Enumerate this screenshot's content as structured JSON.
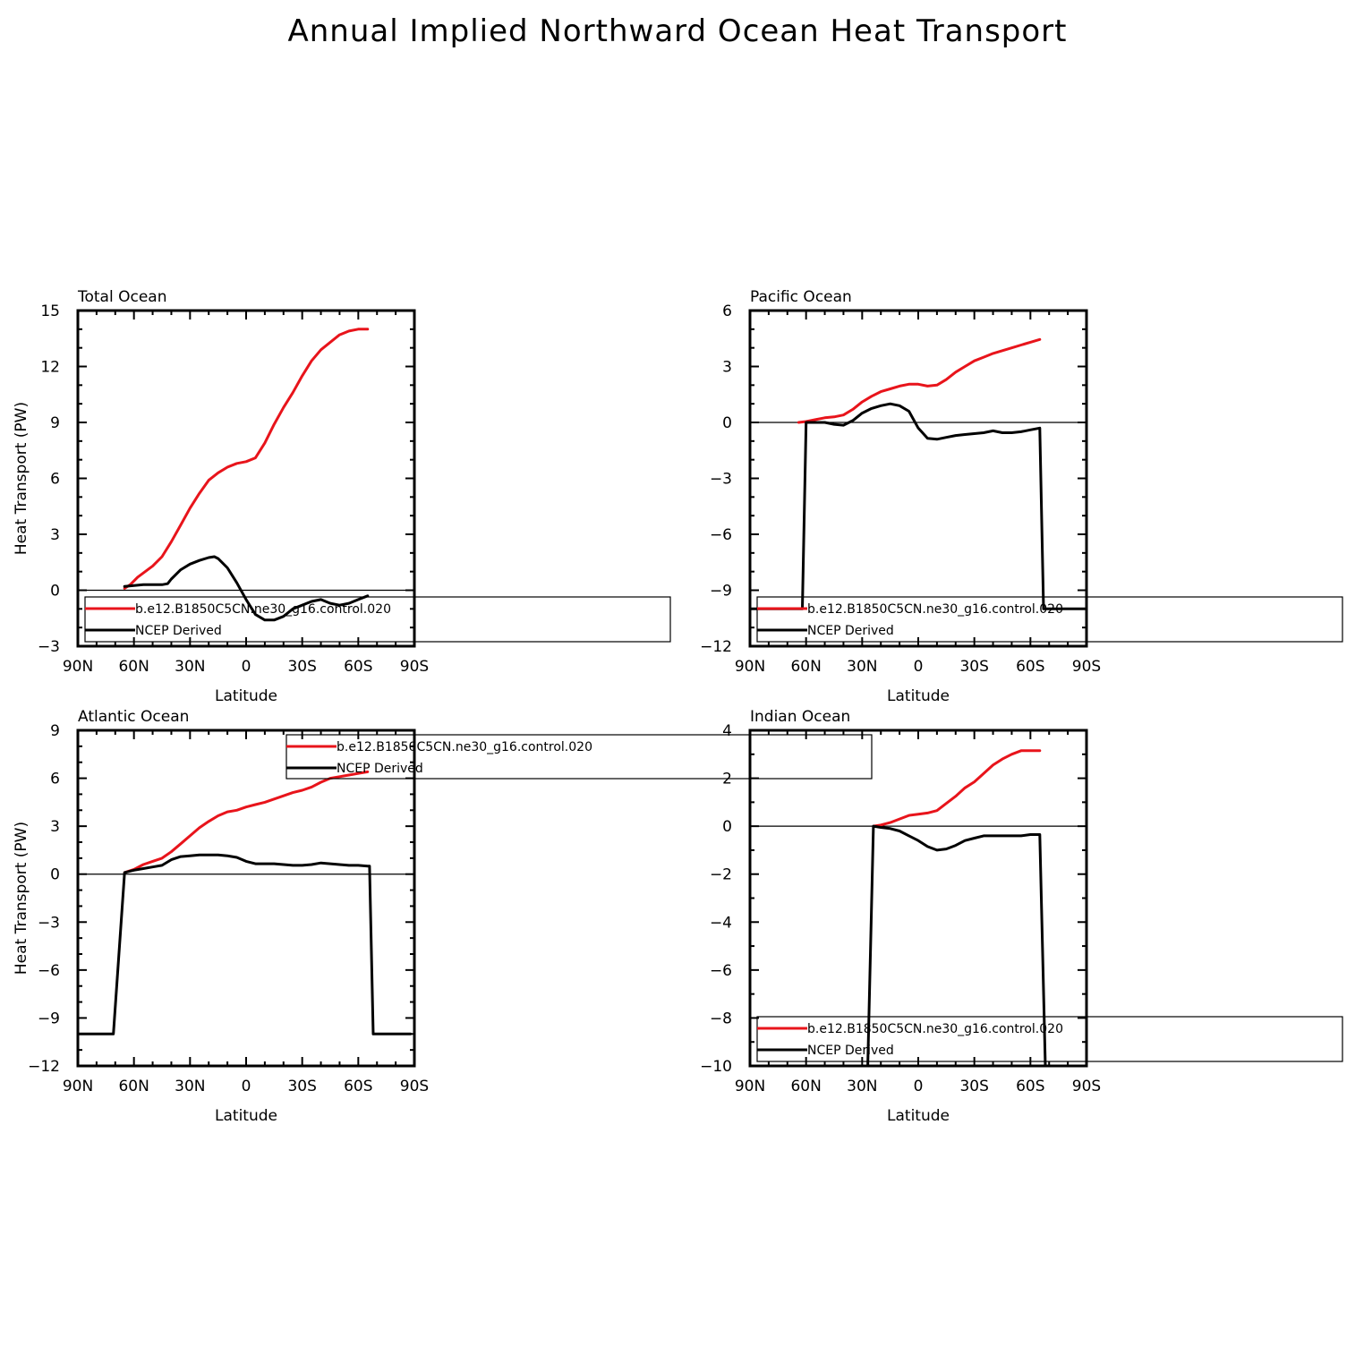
{
  "title": "Annual Implied Northward Ocean Heat Transport",
  "colors": {
    "model": "#e8141b",
    "obs": "#000000"
  },
  "legend_labels": {
    "model": "b.e12.B1850C5CN.ne30_g16.control.020",
    "obs": "NCEP Derived"
  },
  "chart_data": [
    {
      "type": "line",
      "title": "Total Ocean",
      "xlabel": "Latitude",
      "ylabel": "Heat Transport (PW)",
      "xlim": [
        90,
        -90
      ],
      "xticks": [
        90,
        60,
        30,
        0,
        -30,
        -60,
        -90
      ],
      "xticklabels": [
        "90N",
        "60N",
        "30N",
        "0",
        "30S",
        "60S",
        "90S"
      ],
      "ylim": [
        -3,
        15
      ],
      "yticks": [
        -3,
        0,
        3,
        6,
        9,
        12,
        15
      ],
      "zero_line": true,
      "legend": "lower-right, overflowing plot",
      "series": [
        {
          "name": "b.e12.B1850C5CN.ne30_g16.control.020",
          "color": "#e8141b",
          "x": [
            65,
            62,
            58,
            54,
            50,
            45,
            40,
            35,
            30,
            25,
            20,
            15,
            10,
            5,
            0,
            -5,
            -10,
            -15,
            -20,
            -25,
            -30,
            -35,
            -40,
            -45,
            -50,
            -55,
            -60,
            -63,
            -65
          ],
          "y": [
            0.1,
            0.3,
            0.7,
            1.0,
            1.3,
            1.8,
            2.6,
            3.5,
            4.4,
            5.2,
            5.9,
            6.3,
            6.6,
            6.8,
            6.9,
            7.1,
            7.9,
            8.9,
            9.8,
            10.6,
            11.5,
            12.3,
            12.9,
            13.3,
            13.7,
            13.9,
            14.0,
            14.0,
            14.0
          ]
        },
        {
          "name": "NCEP Derived",
          "color": "#000000",
          "x": [
            65,
            60,
            55,
            50,
            45,
            42,
            40,
            35,
            30,
            25,
            20,
            17,
            15,
            10,
            5,
            0,
            -5,
            -10,
            -15,
            -20,
            -25,
            -30,
            -35,
            -40,
            -45,
            -50,
            -55,
            -60,
            -65
          ],
          "y": [
            0.2,
            0.25,
            0.3,
            0.3,
            0.3,
            0.35,
            0.6,
            1.1,
            1.4,
            1.6,
            1.75,
            1.8,
            1.7,
            1.2,
            0.4,
            -0.5,
            -1.3,
            -1.6,
            -1.6,
            -1.4,
            -1.0,
            -0.8,
            -0.6,
            -0.5,
            -0.7,
            -0.8,
            -0.7,
            -0.5,
            -0.3
          ]
        }
      ]
    },
    {
      "type": "line",
      "title": "Pacific Ocean",
      "xlabel": "Latitude",
      "ylabel": "",
      "xlim": [
        90,
        -90
      ],
      "xticks": [
        90,
        60,
        30,
        0,
        -30,
        -60,
        -90
      ],
      "xticklabels": [
        "90N",
        "60N",
        "30N",
        "0",
        "30S",
        "60S",
        "90S"
      ],
      "ylim": [
        -12,
        6
      ],
      "yticks": [
        -12,
        -9,
        -6,
        -3,
        0,
        3,
        6
      ],
      "zero_line": true,
      "legend": "lower-right, overflowing plot",
      "series": [
        {
          "name": "b.e12.B1850C5CN.ne30_g16.control.020",
          "color": "#e8141b",
          "x": [
            64,
            60,
            55,
            50,
            45,
            40,
            35,
            30,
            25,
            20,
            15,
            10,
            5,
            0,
            -5,
            -10,
            -15,
            -20,
            -25,
            -30,
            -35,
            -40,
            -45,
            -50,
            -55,
            -60,
            -65
          ],
          "y": [
            0.0,
            0.05,
            0.15,
            0.25,
            0.3,
            0.4,
            0.7,
            1.1,
            1.4,
            1.65,
            1.8,
            1.95,
            2.05,
            2.05,
            1.95,
            2.0,
            2.3,
            2.7,
            3.0,
            3.3,
            3.5,
            3.7,
            3.85,
            4.0,
            4.15,
            4.3,
            4.45
          ]
        },
        {
          "name": "NCEP Derived",
          "color": "#000000",
          "x": [
            90,
            85,
            80,
            75,
            70,
            65,
            62,
            60,
            55,
            50,
            45,
            40,
            35,
            30,
            25,
            20,
            15,
            10,
            5,
            0,
            -5,
            -10,
            -15,
            -20,
            -25,
            -30,
            -35,
            -40,
            -45,
            -50,
            -55,
            -60,
            -65,
            -67,
            -70,
            -75,
            -80,
            -85,
            -90
          ],
          "y": [
            -10,
            -10,
            -10,
            -10,
            -10,
            -10,
            -10,
            0,
            0,
            0,
            -0.1,
            -0.15,
            0.1,
            0.5,
            0.75,
            0.9,
            1.0,
            0.9,
            0.6,
            -0.3,
            -0.85,
            -0.9,
            -0.8,
            -0.7,
            -0.65,
            -0.6,
            -0.55,
            -0.45,
            -0.55,
            -0.55,
            -0.5,
            -0.4,
            -0.3,
            -10,
            -10,
            -10,
            -10,
            -10,
            -10
          ]
        }
      ]
    },
    {
      "type": "line",
      "title": "Atlantic Ocean",
      "xlabel": "Latitude",
      "ylabel": "Heat Transport (PW)",
      "xlim": [
        90,
        -90
      ],
      "xticks": [
        90,
        60,
        30,
        0,
        -30,
        -60,
        -90
      ],
      "xticklabels": [
        "90N",
        "60N",
        "30N",
        "0",
        "30S",
        "60S",
        "90S"
      ],
      "ylim": [
        -12,
        9
      ],
      "yticks": [
        -12,
        -9,
        -6,
        -3,
        0,
        3,
        6,
        9
      ],
      "zero_line": true,
      "legend": "top-right, overflowing plot",
      "series": [
        {
          "name": "b.e12.B1850C5CN.ne30_g16.control.020",
          "color": "#e8141b",
          "x": [
            65,
            60,
            55,
            50,
            45,
            40,
            35,
            30,
            25,
            20,
            15,
            10,
            5,
            0,
            -5,
            -10,
            -15,
            -20,
            -25,
            -30,
            -35,
            -40,
            -45,
            -50,
            -55,
            -60,
            -65
          ],
          "y": [
            0.1,
            0.3,
            0.6,
            0.8,
            1.0,
            1.4,
            1.9,
            2.4,
            2.9,
            3.3,
            3.65,
            3.9,
            4.0,
            4.2,
            4.35,
            4.5,
            4.7,
            4.9,
            5.1,
            5.25,
            5.45,
            5.75,
            6.0,
            6.1,
            6.2,
            6.3,
            6.4
          ]
        },
        {
          "name": "NCEP Derived",
          "color": "#000000",
          "x": [
            90,
            85,
            80,
            75,
            71,
            65,
            60,
            55,
            50,
            45,
            40,
            35,
            30,
            25,
            20,
            15,
            10,
            5,
            0,
            -5,
            -10,
            -15,
            -20,
            -25,
            -30,
            -35,
            -40,
            -45,
            -50,
            -55,
            -60,
            -65,
            -66,
            -68,
            -70,
            -75,
            -80,
            -85,
            -88
          ],
          "y": [
            -10,
            -10,
            -10,
            -10,
            -10,
            0.1,
            0.25,
            0.35,
            0.45,
            0.55,
            0.9,
            1.1,
            1.15,
            1.2,
            1.2,
            1.2,
            1.15,
            1.05,
            0.8,
            0.65,
            0.65,
            0.65,
            0.6,
            0.55,
            0.55,
            0.6,
            0.7,
            0.65,
            0.6,
            0.55,
            0.55,
            0.5,
            0.5,
            -10,
            -10,
            -10,
            -10,
            -10,
            -10
          ]
        }
      ]
    },
    {
      "type": "line",
      "title": "Indian Ocean",
      "xlabel": "Latitude",
      "ylabel": "",
      "xlim": [
        90,
        -90
      ],
      "xticks": [
        90,
        60,
        30,
        0,
        -30,
        -60,
        -90
      ],
      "xticklabels": [
        "90N",
        "60N",
        "30N",
        "0",
        "30S",
        "60S",
        "90S"
      ],
      "ylim": [
        -10,
        4
      ],
      "yticks": [
        -10,
        -8,
        -6,
        -4,
        -2,
        0,
        2,
        4
      ],
      "zero_line": true,
      "legend": "lower-right, overflowing plot",
      "series": [
        {
          "name": "b.e12.B1850C5CN.ne30_g16.control.020",
          "color": "#e8141b",
          "x": [
            24,
            20,
            15,
            10,
            5,
            0,
            -5,
            -10,
            -15,
            -20,
            -25,
            -30,
            -35,
            -40,
            -45,
            -50,
            -55,
            -60,
            -65
          ],
          "y": [
            0.0,
            0.05,
            0.15,
            0.3,
            0.45,
            0.5,
            0.55,
            0.65,
            0.95,
            1.25,
            1.6,
            1.85,
            2.2,
            2.55,
            2.8,
            3.0,
            3.15,
            3.15,
            3.15
          ]
        },
        {
          "name": "NCEP Derived",
          "color": "#000000",
          "x": [
            27,
            24,
            20,
            15,
            10,
            5,
            0,
            -5,
            -10,
            -15,
            -20,
            -25,
            -30,
            -35,
            -40,
            -45,
            -50,
            -55,
            -60,
            -65,
            -68
          ],
          "y": [
            -10,
            0.0,
            -0.05,
            -0.1,
            -0.2,
            -0.4,
            -0.6,
            -0.85,
            -1.0,
            -0.95,
            -0.8,
            -0.6,
            -0.5,
            -0.4,
            -0.4,
            -0.4,
            -0.4,
            -0.4,
            -0.35,
            -0.35,
            -10
          ]
        }
      ]
    }
  ]
}
